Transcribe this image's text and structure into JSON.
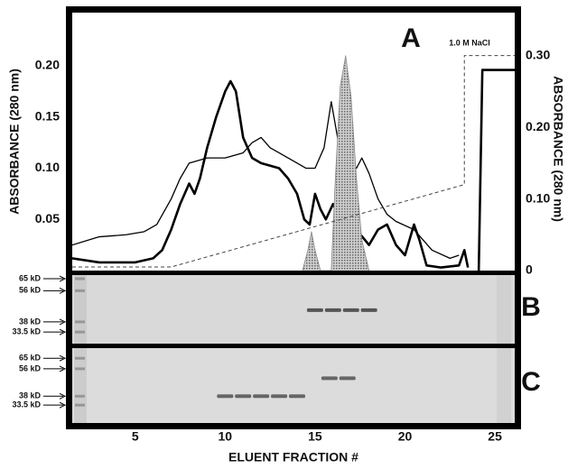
{
  "chart_data": [
    {
      "type": "line",
      "title": "A",
      "annotation": "1.0 M NaCl",
      "xlabel": "ELUENT FRACTION #",
      "ylabel": "ABSORBANCE (280 nm)",
      "y2label": "ABSORBANCE (280 nm)",
      "xlim": [
        1.5,
        26.1
      ],
      "xticks": [
        5,
        10,
        15,
        20,
        25
      ],
      "ylim": [
        0,
        0.252
      ],
      "yticks": [
        0.05,
        {
          "value": 0.1,
          "label": "0.10"
        },
        0.15,
        {
          "value": 0.2,
          "label": "0.20"
        }
      ],
      "y2lim": [
        0,
        0.36
      ],
      "y2ticks": [
        0,
        {
          "value": 0.1,
          "label": "0.10"
        },
        {
          "value": 0.2,
          "label": "0.20"
        },
        {
          "value": 0.3,
          "label": "0.30"
        }
      ],
      "series": [
        {
          "style": "thick",
          "color": "#000000",
          "x": [
            1.5,
            3,
            5,
            6,
            6.5,
            7,
            7.5,
            8,
            8.3,
            8.6,
            9,
            9.5,
            10,
            10.3,
            10.6,
            11,
            11.5,
            12,
            13,
            13.5,
            14,
            14.4,
            14.7,
            15,
            15.3,
            15.6,
            16,
            16.4,
            16.8,
            17.3,
            18,
            18.5,
            19,
            19.5,
            20,
            20.5,
            20.8,
            21.2,
            22,
            23,
            23.3,
            23.5
          ],
          "values": [
            0.012,
            0.008,
            0.008,
            0.012,
            0.02,
            0.04,
            0.065,
            0.085,
            0.075,
            0.09,
            0.12,
            0.15,
            0.175,
            0.185,
            0.175,
            0.13,
            0.11,
            0.105,
            0.1,
            0.09,
            0.075,
            0.05,
            0.045,
            0.075,
            0.06,
            0.05,
            0.065,
            0.05,
            0.04,
            0.04,
            0.025,
            0.04,
            0.045,
            0.025,
            0.015,
            0.045,
            0.03,
            0.005,
            0.003,
            0.005,
            0.02,
            0.003
          ]
        },
        {
          "style": "thin",
          "color": "#000000",
          "x": [
            1.5,
            3,
            4.5,
            5.5,
            6.2,
            7,
            7.5,
            8,
            9,
            10,
            11,
            11.5,
            12,
            12.5,
            13,
            14,
            14.5,
            15,
            15.5,
            15.9,
            16.3,
            16.8,
            17.3,
            17.6,
            18,
            18.5,
            19,
            19.5,
            20.5,
            21.5,
            22.5,
            23
          ],
          "values": [
            0.025,
            0.033,
            0.035,
            0.038,
            0.045,
            0.07,
            0.09,
            0.105,
            0.11,
            0.11,
            0.115,
            0.125,
            0.13,
            0.12,
            0.115,
            0.105,
            0.1,
            0.1,
            0.12,
            0.165,
            0.125,
            0.11,
            0.1,
            0.11,
            0.095,
            0.07,
            0.055,
            0.048,
            0.04,
            0.02,
            0.012,
            0.015
          ]
        },
        {
          "style": "filled",
          "color": "#888888",
          "x": [
            14.3,
            14.6,
            14.8,
            15.0,
            15.3,
            15.9,
            16.1,
            16.4,
            16.7,
            17.0,
            17.3,
            17.6,
            18
          ],
          "values": [
            0,
            0.02,
            0.038,
            0.02,
            0,
            0,
            0.08,
            0.18,
            0.21,
            0.17,
            0.09,
            0.03,
            0
          ]
        },
        {
          "style": "dashed",
          "color": "#444444",
          "axis": "y2",
          "x": [
            1.5,
            7,
            23.3,
            23.3,
            26.1
          ],
          "values": [
            0.005,
            0.005,
            0.12,
            0.3,
            0.3
          ]
        },
        {
          "style": "thick",
          "color": "#000000",
          "axis": "y2",
          "x": [
            24.1,
            24.3,
            26.1
          ],
          "values": [
            0,
            0.28,
            0.28
          ]
        }
      ]
    },
    {
      "type": "gel",
      "title": "B",
      "log": true,
      "ylim": [
        29,
        68
      ],
      "yticks": [
        {
          "value": 65,
          "label": "65 kD"
        },
        {
          "value": 56,
          "label": "56 kD"
        },
        {
          "value": 38,
          "label": "38 kD"
        },
        {
          "value": 33.5,
          "label": "33.5 kD"
        }
      ],
      "series": [
        {
          "color": "#555555",
          "x": [
            15,
            16,
            17,
            18
          ],
          "values": [
            44,
            44,
            44,
            44
          ]
        }
      ]
    },
    {
      "type": "gel",
      "title": "C",
      "log": true,
      "ylim": [
        26,
        75
      ],
      "yticks": [
        {
          "value": 65,
          "label": "65 kD"
        },
        {
          "value": 56,
          "label": "56 kD"
        },
        {
          "value": 38,
          "label": "38 kD"
        },
        {
          "value": 33.5,
          "label": "33.5 kD"
        }
      ],
      "series": [
        {
          "color": "#666666",
          "x": [
            10,
            11,
            12,
            13,
            14
          ],
          "values": [
            38,
            38,
            38,
            38,
            38
          ]
        },
        {
          "color": "#666666",
          "x": [
            15.8,
            16.8
          ],
          "values": [
            49,
            49
          ]
        }
      ]
    }
  ]
}
